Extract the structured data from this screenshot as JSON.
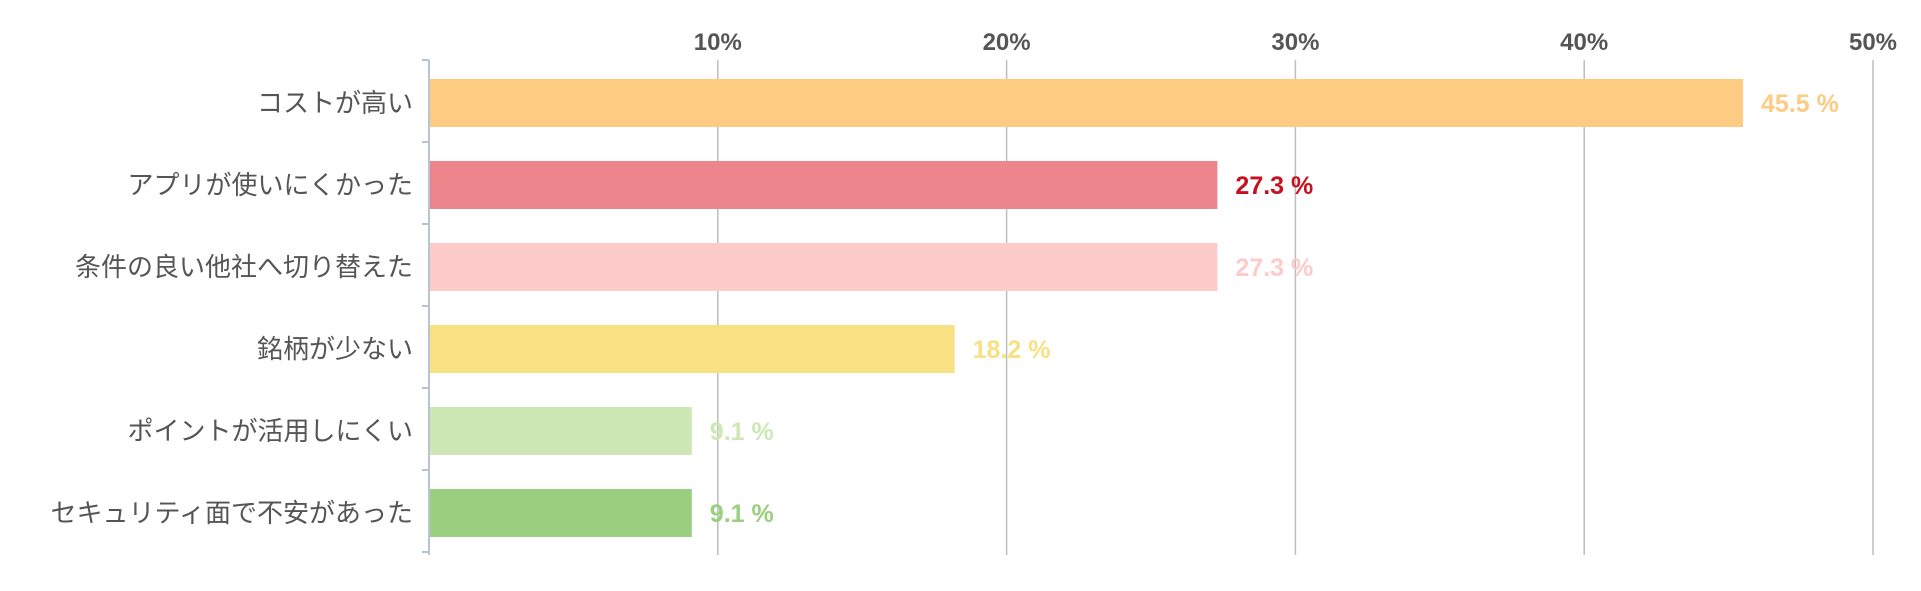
{
  "chart_data": {
    "type": "bar",
    "orientation": "horizontal",
    "categories": [
      "コストが高い",
      "アプリが使いにくかった",
      "条件の良い他社へ切り替えた",
      "銘柄が少ない",
      "ポイントが活用しにくい",
      "セキュリティ面で不安があった"
    ],
    "values": [
      45.5,
      27.3,
      27.3,
      18.2,
      9.1,
      9.1
    ],
    "value_labels": [
      "45.5 %",
      "27.3 %",
      "27.3 %",
      "18.2 %",
      "9.1 %",
      "9.1 %"
    ],
    "colors": [
      "#fecb82",
      "#ec868c",
      "#fecbcb",
      "#f7e183",
      "#cde8b4",
      "#99cf7e"
    ],
    "label_colors": [
      "#fecb82",
      "#c8101e",
      "#fecbcb",
      "#f7e183",
      "#cde8b4",
      "#99cf7e"
    ],
    "xlim": [
      0,
      50
    ],
    "ticks": [
      10,
      20,
      30,
      40,
      50
    ],
    "tick_labels": [
      "10%",
      "20%",
      "30%",
      "40%",
      "50%"
    ],
    "grid": true,
    "axis_position": "top",
    "title": "",
    "xlabel": "",
    "ylabel": ""
  }
}
